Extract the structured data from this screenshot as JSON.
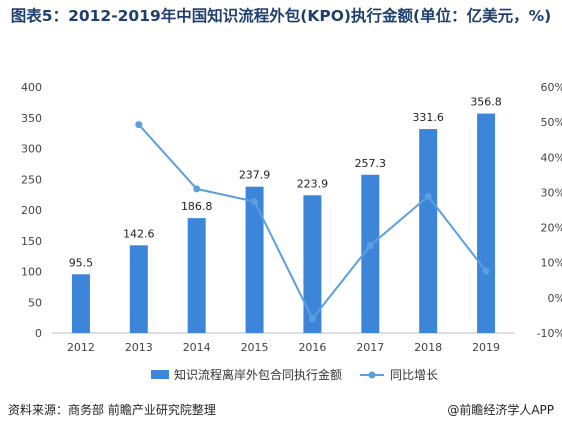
{
  "chart_data": {
    "type": "bar",
    "title": "图表5：2012-2019年中国知识流程外包(KPO)执行金额(单位：亿美元，%)",
    "categories": [
      "2012",
      "2013",
      "2014",
      "2015",
      "2016",
      "2017",
      "2018",
      "2019"
    ],
    "series": [
      {
        "name": "知识流程离岸外包合同执行金额",
        "type": "bar",
        "axis": "left",
        "values": [
          95.5,
          142.6,
          186.8,
          237.9,
          223.9,
          257.3,
          331.6,
          356.8
        ]
      },
      {
        "name": "同比增长",
        "type": "line",
        "axis": "right",
        "values": [
          null,
          49.3,
          31.0,
          27.4,
          -5.9,
          14.9,
          28.9,
          7.6
        ]
      }
    ],
    "y_left": {
      "min": 0,
      "max": 400,
      "step": 50,
      "ticks": [
        "0",
        "50",
        "100",
        "150",
        "200",
        "250",
        "300",
        "350",
        "400"
      ]
    },
    "y_right": {
      "min": -10,
      "max": 60,
      "step": 10,
      "ticks": [
        "-10%",
        "0%",
        "10%",
        "20%",
        "30%",
        "40%",
        "50%",
        "60%"
      ]
    },
    "bar_labels": [
      "95.5",
      "142.6",
      "186.8",
      "237.9",
      "223.9",
      "257.3",
      "331.6",
      "356.8"
    ],
    "grid": false,
    "legend_position": "bottom",
    "colors": {
      "bar": "#3d85d8",
      "line": "#5b9fe0",
      "title": "#1f3f6e"
    }
  },
  "footer": {
    "source": "资料来源：商务部 前瞻产业研究院整理",
    "brand": "@前瞻经济学人APP"
  }
}
